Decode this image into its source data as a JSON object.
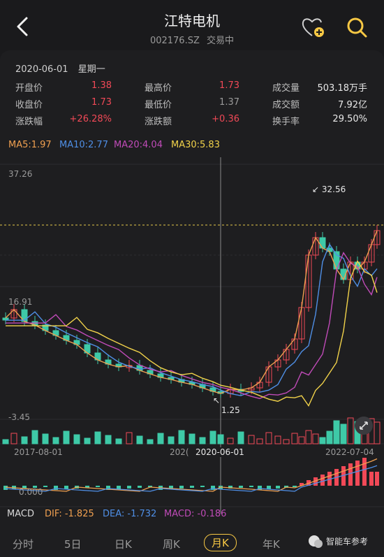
{
  "header": {
    "title": "江特电机",
    "code": "002176.SZ",
    "status": "交易中"
  },
  "info": {
    "date": "2020-06-01",
    "weekday": "星期一",
    "open_label": "开盘价",
    "open": "1.38",
    "high_label": "最高价",
    "high": "1.73",
    "volume_label": "成交量",
    "volume": "503.18万手",
    "close_label": "收盘价",
    "close": "1.73",
    "low_label": "最低价",
    "low": "1.37",
    "amount_label": "成交额",
    "amount": "7.92亿",
    "change_pct_label": "涨跌幅",
    "change_pct": "+26.28%",
    "change_label": "涨跌额",
    "change": "+0.36",
    "turnover_label": "换手率",
    "turnover": "29.50%"
  },
  "ma": {
    "ma5": "MA5:1.97",
    "ma10": "MA10:2.77",
    "ma20": "MA20:4.04",
    "ma30": "MA30:5.83"
  },
  "axis": {
    "ymax": "37.26",
    "ymid": "16.91",
    "ymin": "-3.45",
    "high_mark": "32.56",
    "low_mark": "1.25",
    "x_left": "2017-08-01",
    "x_mid_partial": "202(",
    "x_cursor": "2020-06-01",
    "x_right": "2022-07-04",
    "macd_zero": "0.000"
  },
  "macd": {
    "label": "MACD",
    "dif": "DIF: -1.825",
    "dea": "DEA: -1.732",
    "macd": "MACD: -0.186"
  },
  "tabs": [
    "分时",
    "5日",
    "日K",
    "周K",
    "月K",
    "年K"
  ],
  "active_tab": "月K",
  "watermark": "智能车参考",
  "colors": {
    "up": "#f24957",
    "down": "#3ec9a7",
    "ma5": "#f0a050",
    "ma10": "#4f8fe6",
    "ma20": "#c04bb8",
    "ma30": "#f1d24a"
  }
}
